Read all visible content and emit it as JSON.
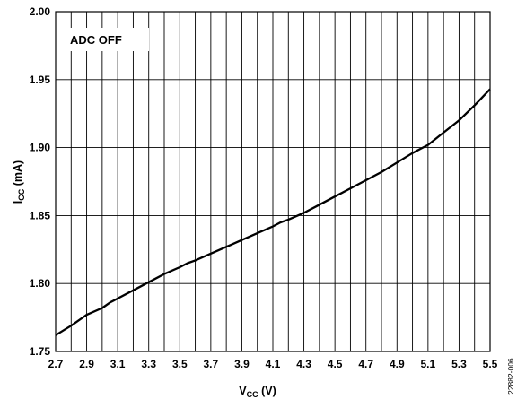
{
  "chart_data": {
    "type": "line",
    "title": "",
    "annotation": "ADC OFF",
    "xlabel": {
      "main": "V",
      "sub": "CC",
      "unit": " (V)"
    },
    "ylabel": {
      "main": "I",
      "sub": "CC",
      "unit": " (mA)"
    },
    "xlim": [
      2.7,
      5.5
    ],
    "ylim": [
      1.75,
      2.0
    ],
    "x_ticks": [
      "2.7",
      "2.9",
      "3.1",
      "3.3",
      "3.5",
      "3.7",
      "3.9",
      "4.1",
      "4.3",
      "4.5",
      "4.7",
      "4.9",
      "5.1",
      "5.3",
      "5.5"
    ],
    "y_ticks": [
      "1.75",
      "1.80",
      "1.85",
      "1.90",
      "1.95",
      "2.00"
    ],
    "grid": true,
    "series": [
      {
        "x": [
          2.7,
          2.8,
          2.9,
          3.0,
          3.05,
          3.1,
          3.2,
          3.3,
          3.4,
          3.5,
          3.55,
          3.6,
          3.7,
          3.8,
          3.9,
          4.0,
          4.1,
          4.15,
          4.2,
          4.3,
          4.4,
          4.5,
          4.6,
          4.7,
          4.8,
          4.9,
          5.0,
          5.05,
          5.1,
          5.2,
          5.3,
          5.4,
          5.5
        ],
        "y": [
          1.762,
          1.769,
          1.777,
          1.782,
          1.786,
          1.789,
          1.795,
          1.801,
          1.807,
          1.812,
          1.815,
          1.817,
          1.822,
          1.827,
          1.832,
          1.837,
          1.842,
          1.845,
          1.847,
          1.852,
          1.858,
          1.864,
          1.87,
          1.876,
          1.882,
          1.889,
          1.896,
          1.899,
          1.902,
          1.911,
          1.92,
          1.931,
          1.943
        ]
      }
    ]
  },
  "figure_id": "22882-006"
}
